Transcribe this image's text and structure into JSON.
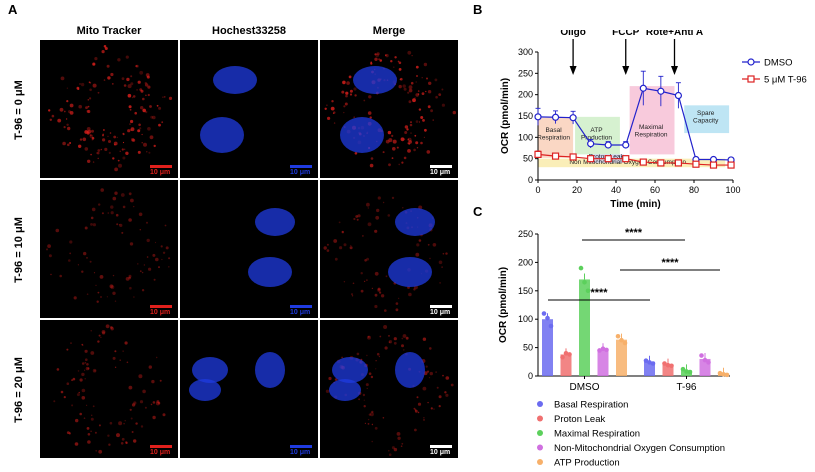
{
  "panel_labels": {
    "a": "A",
    "b": "B",
    "c": "C"
  },
  "microscopy": {
    "column_headers": [
      "Mito Tracker",
      "Hochest33258",
      "Merge"
    ],
    "row_labels": [
      "T-96 = 0 μM",
      "T-96 = 10 μM",
      "T-96 = 20 μM"
    ],
    "scale_bar": "10 μm",
    "colors": {
      "mito": "#e0201c",
      "nucleus": "#1f3be0",
      "white": "#ffffff"
    }
  },
  "chart_data": [
    {
      "type": "line",
      "title": "",
      "xlabel": "Time (min)",
      "ylabel": "OCR (pmol/min)",
      "xlim": [
        0,
        100
      ],
      "ylim": [
        0,
        300
      ],
      "xticks": [
        0,
        20,
        40,
        60,
        80,
        100
      ],
      "yticks": [
        0,
        50,
        100,
        150,
        200,
        250,
        300
      ],
      "series": [
        {
          "name": "DMSO",
          "color": "#2222cc",
          "marker": "circle",
          "x": [
            0,
            9,
            18,
            27,
            36,
            45,
            54,
            63,
            72,
            81,
            90,
            99
          ],
          "y": [
            148,
            147,
            146,
            85,
            82,
            82,
            215,
            208,
            198,
            48,
            48,
            47
          ],
          "err": [
            20,
            15,
            15,
            10,
            8,
            8,
            40,
            35,
            30,
            5,
            5,
            5
          ]
        },
        {
          "name": "5 μM T-96",
          "color": "#dd2222",
          "marker": "square",
          "x": [
            0,
            9,
            18,
            27,
            36,
            45,
            54,
            63,
            72,
            81,
            90,
            99
          ],
          "y": [
            60,
            56,
            54,
            50,
            50,
            50,
            42,
            40,
            40,
            37,
            35,
            35
          ],
          "err": [
            8,
            6,
            6,
            5,
            5,
            5,
            5,
            5,
            5,
            4,
            4,
            4
          ]
        }
      ],
      "injections": [
        {
          "label": "Oligo",
          "x": 18
        },
        {
          "label": "FCCP",
          "x": 45
        },
        {
          "label": "Rote+Anti A",
          "x": 70
        }
      ],
      "regions": [
        {
          "label": "Basal\nRespiration",
          "color": "#f8c9b0"
        },
        {
          "label": "ATP\nProduction",
          "color": "#c8ecc0"
        },
        {
          "label": "Proton Leak",
          "color": "#c8c8f0"
        },
        {
          "label": "Maximal\nRespiration",
          "color": "#f5b8d0"
        },
        {
          "label": "Spare\nCapacity",
          "color": "#a8dcf0"
        },
        {
          "label": "Non Mitochondrial Oxygen Consumption",
          "color": "#f8e8a0"
        }
      ],
      "legend_position": "right"
    },
    {
      "type": "bar",
      "title": "",
      "xlabel": "",
      "ylabel": "OCR (pmol/min)",
      "ylim": [
        0,
        250
      ],
      "yticks": [
        0,
        50,
        100,
        150,
        200,
        250
      ],
      "categories": [
        "DMSO",
        "T-96"
      ],
      "series": [
        {
          "name": "Basal Respiration",
          "color": "#6b6bf0",
          "values": [
            100,
            25
          ],
          "points": [
            [
              110,
              102,
              88
            ],
            [
              27,
              24,
              22
            ]
          ]
        },
        {
          "name": "Proton Leak",
          "color": "#f07070",
          "values": [
            38,
            20
          ],
          "points": [
            [
              33,
              40,
              38
            ],
            [
              22,
              19,
              18
            ]
          ]
        },
        {
          "name": "Maximal Respiration",
          "color": "#5cd05c",
          "values": [
            170,
            10
          ],
          "points": [
            [
              190,
              165,
              150
            ],
            [
              12,
              8,
              7
            ]
          ]
        },
        {
          "name": "Non-Mitochondrial Oxygen Consumption",
          "color": "#d070e0",
          "values": [
            47,
            30
          ],
          "points": [
            [
              45,
              48,
              46
            ],
            [
              36,
              28,
              24
            ]
          ]
        },
        {
          "name": "ATP Production",
          "color": "#f7b06a",
          "values": [
            64,
            4
          ],
          "points": [
            [
              70,
              63,
              58
            ],
            [
              5,
              3,
              2
            ]
          ]
        }
      ],
      "significance": [
        "****",
        "****",
        "****"
      ],
      "legend_position": "bottom"
    }
  ]
}
